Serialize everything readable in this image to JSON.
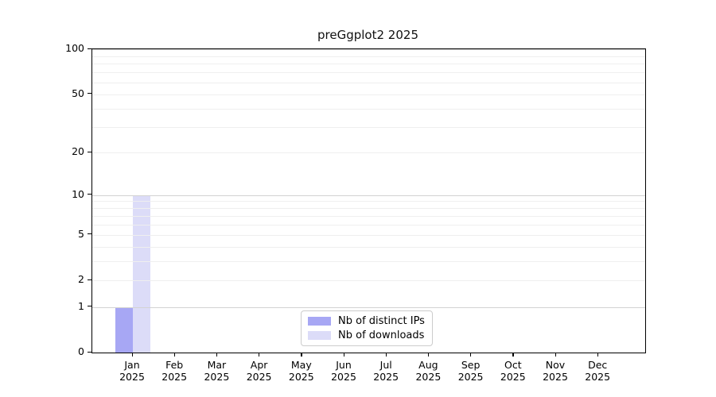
{
  "title": "preGgplot2 2025",
  "chart_data": {
    "type": "bar",
    "title": "preGgplot2 2025",
    "categories": [
      "Jan",
      "Feb",
      "Mar",
      "Apr",
      "May",
      "Jun",
      "Jul",
      "Aug",
      "Sep",
      "Oct",
      "Nov",
      "Dec"
    ],
    "category_sublabel": "2025",
    "series": [
      {
        "name": "Nb of distinct IPs",
        "color": "#a7a7f4",
        "values": [
          1,
          0,
          0,
          0,
          0,
          0,
          0,
          0,
          0,
          0,
          0,
          0
        ]
      },
      {
        "name": "Nb of downloads",
        "color": "#dcdcf8",
        "values": [
          10,
          0,
          0,
          0,
          0,
          0,
          0,
          0,
          0,
          0,
          0,
          0
        ]
      }
    ],
    "yscale": "log1p",
    "ylim": [
      0,
      100
    ],
    "y_ticks": [
      100,
      50,
      20,
      10,
      5,
      2,
      1,
      0
    ],
    "grid_major_values": [
      1,
      10,
      100
    ],
    "grid_minor_values": [
      2,
      3,
      4,
      5,
      6,
      7,
      8,
      9,
      20,
      30,
      40,
      50,
      60,
      70,
      80,
      90
    ],
    "grid": "horizontal",
    "legend_position": "bottom-center-inside"
  },
  "colors": {
    "series_ips": "#a7a7f4",
    "series_downloads": "#dcdcf8",
    "grid_major": "#d2d2d2",
    "grid_minor": "#efefef",
    "axis": "#000000",
    "legend_border": "#cccccc"
  }
}
